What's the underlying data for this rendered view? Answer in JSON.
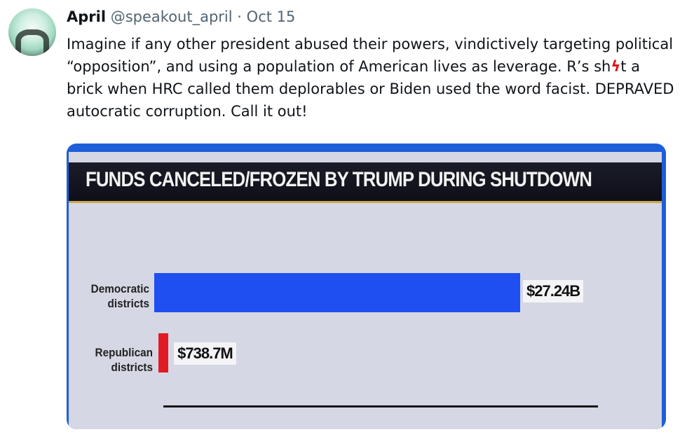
{
  "tweet": {
    "author_name": "April",
    "handle": "@speakout_april",
    "separator": "·",
    "date": "Oct 15",
    "text_before": "Imagine if any other president abused their powers, vindictively targeting political “opposition”, and using a population of American lives as leverage. R’s sh",
    "bolt_glyph": "ϟ",
    "text_after": "t a brick when HRC called them deplorables or Biden used the word facist. DEPRAVED autocratic corruption. Call it out!"
  },
  "chart_data": {
    "type": "bar",
    "orientation": "horizontal",
    "title": "FUNDS CANCELED/FROZEN BY TRUMP DURING SHUTDOWN",
    "categories": [
      "Democratic districts",
      "Republican districts"
    ],
    "category_lines": [
      [
        "Democratic",
        "districts"
      ],
      [
        "Republican",
        "districts"
      ]
    ],
    "values": [
      27.24,
      0.7387
    ],
    "unit": "billion USD",
    "value_labels": [
      "$27.24B",
      "$738.7M"
    ],
    "colors": [
      "#1f4ff0",
      "#e01b24"
    ]
  }
}
